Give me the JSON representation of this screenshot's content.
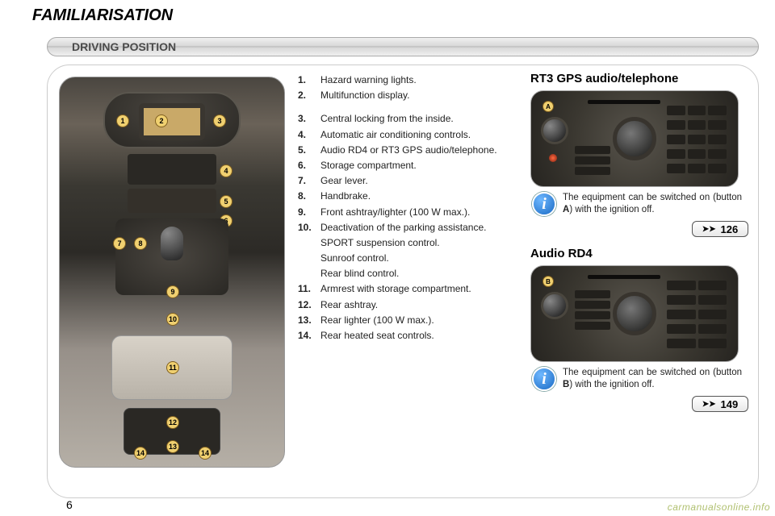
{
  "page": {
    "title": "FAMILIARISATION",
    "section": "DRIVING POSITION",
    "number": "6",
    "watermark": "carmanualsonline.info"
  },
  "list": [
    {
      "n": "1.",
      "t": "Hazard warning lights."
    },
    {
      "n": "2.",
      "t": "Multifunction display."
    },
    {
      "n": "",
      "t": "",
      "gap": true
    },
    {
      "n": "3.",
      "t": "Central locking from the inside."
    },
    {
      "n": "4.",
      "t": "Automatic air conditioning controls."
    },
    {
      "n": "5.",
      "t": "Audio RD4 or RT3 GPS audio/telephone."
    },
    {
      "n": "6.",
      "t": "Storage compartment."
    },
    {
      "n": "7.",
      "t": "Gear lever."
    },
    {
      "n": "8.",
      "t": "Handbrake."
    },
    {
      "n": "9.",
      "t": "Front ashtray/lighter (100 W max.)."
    },
    {
      "n": "10.",
      "t": "Deactivation of the parking assistance."
    },
    {
      "n": "",
      "t": "SPORT suspension control."
    },
    {
      "n": "",
      "t": "Sunroof control."
    },
    {
      "n": "",
      "t": "Rear blind control."
    },
    {
      "n": "11.",
      "t": "Armrest with storage compartment."
    },
    {
      "n": "12.",
      "t": "Rear ashtray."
    },
    {
      "n": "13.",
      "t": "Rear lighter (100 W max.)."
    },
    {
      "n": "14.",
      "t": "Rear heated seat controls."
    }
  ],
  "console_labels": {
    "c1": "1",
    "c2": "2",
    "c3": "3",
    "c4": "4",
    "c5": "5",
    "c6": "6",
    "c7": "7",
    "c8": "8",
    "c9": "9",
    "c10": "10",
    "c11": "11",
    "c12": "12",
    "c13": "13",
    "c14a": "14",
    "c14b": "14"
  },
  "rt3": {
    "heading": "RT3 GPS audio/telephone",
    "badge": "A",
    "info_pre": "The equipment can be switched on (button ",
    "info_bold": "A",
    "info_post": ") with the ignition off.",
    "ref_arrow": "➤➤",
    "ref": "126"
  },
  "rd4": {
    "heading": "Audio RD4",
    "badge": "B",
    "info_pre": "The equipment can be switched on (button ",
    "info_bold": "B",
    "info_post": ") with the ignition off.",
    "ref_arrow": "➤➤",
    "ref": "149"
  },
  "info_glyph": "i",
  "colors": {
    "callout_bg": "#f0d070",
    "info_icon_bg": "#1a6ac4"
  }
}
